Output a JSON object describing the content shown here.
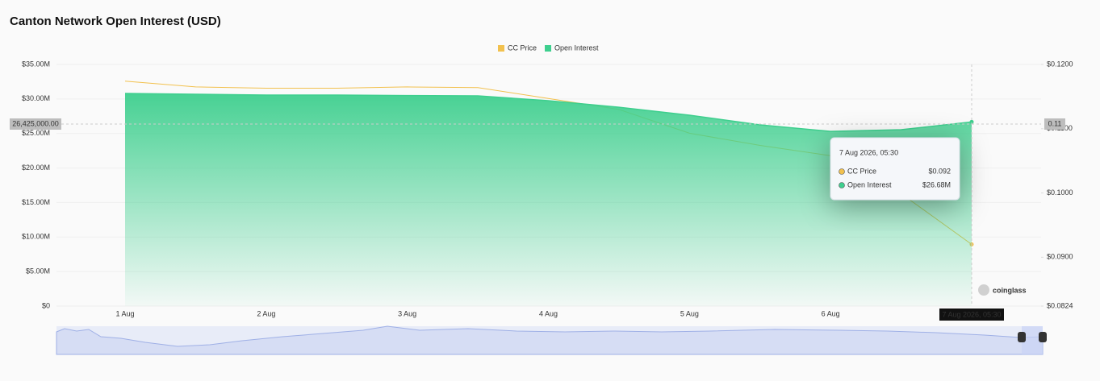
{
  "chart_data": {
    "type": "area-line",
    "title": "Canton Network Open Interest (USD)",
    "categories": [
      "1 Aug",
      null,
      "2 Aug",
      null,
      "3 Aug",
      null,
      "4 Aug",
      null,
      "5 Aug",
      null,
      "6 Aug",
      null,
      "7 Aug 2026, 05:30"
    ],
    "series": [
      {
        "name": "CC Price",
        "color": "#f2c14e",
        "axis": "y2",
        "values": [
          0.1174,
          0.1165,
          0.1163,
          0.1163,
          0.1165,
          0.1164,
          0.1147,
          0.113,
          0.1093,
          0.1074,
          0.1058,
          0.0999,
          0.092
        ]
      },
      {
        "name": "Open Interest",
        "color": "#3ecf8e",
        "values": [
          30800000,
          30680000,
          30570000,
          30570000,
          30500000,
          30450000,
          29750000,
          28800000,
          27650000,
          26250000,
          25300000,
          25550000,
          26680000
        ]
      }
    ],
    "ylim": [
      0,
      35000000
    ],
    "yticks": [
      {
        "value": 0,
        "label": "$0"
      },
      {
        "value": 5000000,
        "label": "$5.00M"
      },
      {
        "value": 10000000,
        "label": "$10.00M"
      },
      {
        "value": 15000000,
        "label": "$15.00M"
      },
      {
        "value": 20000000,
        "label": "$20.00M"
      },
      {
        "value": 25000000,
        "label": "$25.00M"
      },
      {
        "value": 30000000,
        "label": "$30.00M"
      },
      {
        "value": 35000000,
        "label": "$35.00M"
      }
    ],
    "y2lim": [
      0.0824,
      0.12
    ],
    "y2ticks": [
      {
        "value": 0.0824,
        "label": "$0.0824"
      },
      {
        "value": 0.09,
        "label": "$0.0900"
      },
      {
        "value": 0.1,
        "label": "$0.1000"
      },
      {
        "value": 0.11,
        "label": "$0.1100"
      },
      {
        "value": 0.12,
        "label": "$0.1200"
      }
    ],
    "grid": true,
    "legend": "top",
    "crosshair": {
      "y_label": "26,425,000.00",
      "y2_label": "0.11"
    },
    "tooltip": {
      "values": [
        "$0.092",
        "$26.68M"
      ]
    },
    "watermark": "coinglass"
  }
}
